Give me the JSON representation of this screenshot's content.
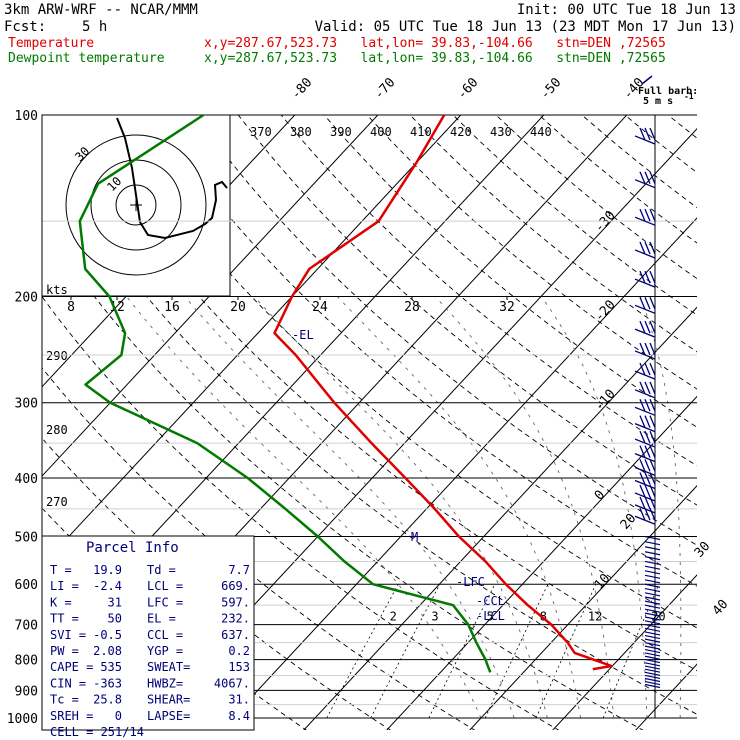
{
  "header": {
    "model": "3km ARW-WRF -- NCAR/MMM",
    "init": "Init: 00 UTC Tue 18 Jun 13",
    "fcst_label": "Fcst:",
    "fcst_value": "5 h",
    "valid": "Valid: 05 UTC Tue 18 Jun 13 (23 MDT Mon 17 Jun 13)",
    "temp_name": "Temperature",
    "temp_info": "x,y=287.67,523.73   lat,lon= 39.83,-104.66   stn=DEN ,72565",
    "dew_name": "Dewpoint temperature",
    "dew_info": "x,y=287.67,523.73   lat,lon= 39.83,-104.66   stn=DEN ,72565"
  },
  "colors": {
    "temperature": "#e00000",
    "dewpoint": "#007a00",
    "barbs": "#00007a",
    "hodograph": "#000000"
  },
  "chart_data": {
    "type": "line",
    "title": "",
    "ylabel": "",
    "y_scale": "log-pressure",
    "ylim": [
      1000,
      100
    ],
    "pressure_ticks": [
      100,
      200,
      300,
      400,
      500,
      600,
      700,
      800,
      900,
      1000
    ],
    "isotherm_labels": [
      -80,
      -70,
      -60,
      -50,
      -40,
      -30,
      -20,
      -10,
      0,
      10,
      20,
      30,
      40
    ],
    "theta_labels": [
      370,
      380,
      390,
      400,
      410,
      420,
      430,
      440,
      290,
      280,
      270
    ],
    "mixing_ratio_labels": [
      2,
      3,
      5,
      8,
      12,
      20
    ],
    "series": [
      {
        "name": "Temperature",
        "color": "#e00000",
        "points": [
          [
            100,
            -62
          ],
          [
            120,
            -60
          ],
          [
            150,
            -58
          ],
          [
            180,
            -61
          ],
          [
            200,
            -60
          ],
          [
            230,
            -58
          ],
          [
            250,
            -53
          ],
          [
            300,
            -43
          ],
          [
            350,
            -34
          ],
          [
            400,
            -26
          ],
          [
            450,
            -19
          ],
          [
            500,
            -13
          ],
          [
            550,
            -7
          ],
          [
            600,
            -2
          ],
          [
            650,
            3
          ],
          [
            700,
            8
          ],
          [
            750,
            12
          ],
          [
            780,
            14
          ],
          [
            800,
            17
          ],
          [
            820,
            19.9
          ],
          [
            830,
            18
          ]
        ]
      },
      {
        "name": "Dewpoint temperature",
        "color": "#007a00",
        "points": [
          [
            100,
            -91
          ],
          [
            130,
            -96
          ],
          [
            150,
            -94
          ],
          [
            180,
            -88
          ],
          [
            200,
            -82
          ],
          [
            230,
            -76
          ],
          [
            250,
            -74
          ],
          [
            280,
            -75
          ],
          [
            300,
            -70
          ],
          [
            350,
            -55
          ],
          [
            400,
            -45
          ],
          [
            450,
            -37
          ],
          [
            500,
            -30
          ],
          [
            550,
            -24
          ],
          [
            600,
            -18
          ],
          [
            650,
            -6
          ],
          [
            700,
            -2
          ],
          [
            750,
            1
          ],
          [
            800,
            4
          ],
          [
            820,
            5
          ],
          [
            840,
            6
          ]
        ]
      }
    ],
    "annotations": [
      "-EL",
      "M",
      "-LFC",
      "-CCL",
      "-LCL"
    ],
    "hodograph": {
      "ring_labels": [
        "30",
        "10"
      ],
      "speed_labels": [
        "8",
        "12",
        "16",
        "20",
        "24",
        "28",
        "32"
      ],
      "units": "kts"
    },
    "wind_legend": {
      "title": "Full barb:",
      "value": "5 m s",
      "superscript": "-1"
    }
  },
  "parcel_info": {
    "title": "Parcel Info",
    "rows": [
      [
        "T    =",
        "19.9",
        "Td  =",
        "7.7"
      ],
      [
        "LI   =",
        "-2.4",
        "LCL =",
        "669."
      ],
      [
        "K    =",
        "31",
        "LFC =",
        "597."
      ],
      [
        "TT   =",
        "50",
        "EL  =",
        "232."
      ],
      [
        "SVI  =",
        "-0.5",
        "CCL =",
        "637."
      ],
      [
        "PW   =",
        "2.08",
        "YGP =",
        "0.2"
      ],
      [
        "CAPE =",
        "535",
        "SWEAT=",
        "153"
      ],
      [
        "CIN  =",
        "-363",
        "HWBZ=",
        "4067."
      ],
      [
        "Tc   =",
        "25.8",
        "SHEAR=",
        "31."
      ],
      [
        "SREH =",
        "0",
        "LAPSE=",
        "8.4"
      ]
    ],
    "cell": "CELL = 251/14"
  }
}
